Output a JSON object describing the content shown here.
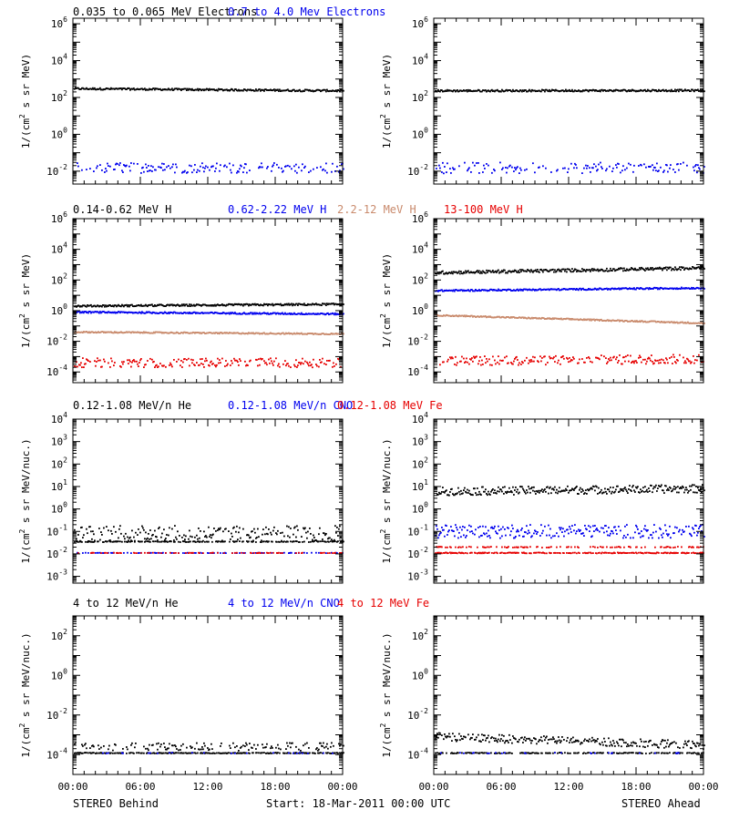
{
  "colors": {
    "black": "#000000",
    "blue": "#0000ee",
    "tan": "#c98a6c",
    "red": "#e60000"
  },
  "footer": {
    "left": "STEREO Behind",
    "center": "Start: 18-Mar-2011 00:00 UTC",
    "right": "STEREO Ahead"
  },
  "chart_data": [
    {
      "type": "scatter",
      "panel": "Electrons Behind",
      "row": 0,
      "col": 0,
      "scale": "log",
      "legend": [
        {
          "text": "0.035 to 0.065 MeV Electrons",
          "color": "black"
        },
        {
          "text": "0.7 to 4.0 Mev Electrons",
          "color": "blue"
        }
      ],
      "ylabel": [
        "1/(cm",
        "2",
        " s sr MeV)"
      ],
      "ylim": [
        0.002,
        2000000
      ],
      "yticks": [
        {
          "pow": -2
        },
        {
          "pow": 0
        },
        {
          "pow": 2
        },
        {
          "pow": 4
        },
        {
          "pow": 6
        }
      ],
      "x_tick_labels": [],
      "series": [
        {
          "color": "black",
          "start": 300,
          "end": 230,
          "spread": 0.05,
          "density": 1.0
        },
        {
          "color": "blue",
          "start": 0.015,
          "end": 0.015,
          "spread": 0.28,
          "density": 0.55
        }
      ]
    },
    {
      "type": "scatter",
      "panel": "Electrons Ahead",
      "row": 0,
      "col": 1,
      "scale": "log",
      "legend": [],
      "ylabel": [
        "1/(cm",
        "2",
        " s sr MeV)"
      ],
      "ylim": [
        0.002,
        2000000
      ],
      "yticks": [
        {
          "pow": -2
        },
        {
          "pow": 0
        },
        {
          "pow": 2
        },
        {
          "pow": 4
        },
        {
          "pow": 6
        }
      ],
      "x_tick_labels": [],
      "series": [
        {
          "color": "black",
          "start": 230,
          "end": 240,
          "spread": 0.05,
          "density": 1.0
        },
        {
          "color": "blue",
          "start": 0.015,
          "end": 0.015,
          "spread": 0.3,
          "density": 0.5
        }
      ]
    },
    {
      "type": "scatter",
      "panel": "Protons Behind",
      "row": 1,
      "col": 0,
      "scale": "log",
      "legend": [
        {
          "text": "0.14-0.62 MeV H",
          "color": "black"
        },
        {
          "text": "0.62-2.22 MeV H",
          "color": "blue"
        },
        {
          "text": "2.2-12 MeV H",
          "color": "tan"
        },
        {
          "text": "13-100 MeV H",
          "color": "red"
        }
      ],
      "ylabel": [
        "1/(cm",
        "2",
        " s sr MeV)"
      ],
      "ylim": [
        2e-05,
        1000000
      ],
      "yticks": [
        {
          "pow": -4
        },
        {
          "pow": -2
        },
        {
          "pow": 0
        },
        {
          "pow": 2
        },
        {
          "pow": 4
        },
        {
          "pow": 6
        }
      ],
      "x_tick_labels": [],
      "series": [
        {
          "color": "black",
          "start": 2.0,
          "end": 2.6,
          "spread": 0.06,
          "density": 1.0
        },
        {
          "color": "blue",
          "start": 0.8,
          "end": 0.6,
          "spread": 0.05,
          "density": 1.0
        },
        {
          "color": "tan",
          "start": 0.04,
          "end": 0.03,
          "spread": 0.04,
          "density": 1.0
        },
        {
          "color": "red",
          "start": 0.0004,
          "end": 0.0004,
          "spread": 0.3,
          "density": 0.7
        }
      ]
    },
    {
      "type": "scatter",
      "panel": "Protons Ahead",
      "row": 1,
      "col": 1,
      "scale": "log",
      "legend": [],
      "ylabel": [
        "1/(cm",
        "2",
        " s sr MeV)"
      ],
      "ylim": [
        2e-05,
        1000000
      ],
      "yticks": [
        {
          "pow": -4
        },
        {
          "pow": -2
        },
        {
          "pow": 0
        },
        {
          "pow": 2
        },
        {
          "pow": 4
        },
        {
          "pow": 6
        }
      ],
      "x_tick_labels": [],
      "series": [
        {
          "color": "black",
          "start": 300,
          "end": 600,
          "spread": 0.1,
          "density": 1.0
        },
        {
          "color": "blue",
          "start": 20,
          "end": 30,
          "spread": 0.05,
          "density": 1.0
        },
        {
          "color": "tan",
          "start": 0.5,
          "end": 0.15,
          "spread": 0.04,
          "density": 1.0
        },
        {
          "color": "red",
          "start": 0.0005,
          "end": 0.0007,
          "spread": 0.3,
          "density": 0.7
        }
      ]
    },
    {
      "type": "scatter",
      "panel": "Heavy ions low Behind",
      "row": 2,
      "col": 0,
      "scale": "log",
      "legend": [
        {
          "text": "0.12-1.08 MeV/n He",
          "color": "black"
        },
        {
          "text": "0.12-1.08 MeV/n CNO",
          "color": "blue"
        },
        {
          "text": "0.12-1.08 MeV Fe",
          "color": "red"
        }
      ],
      "ylabel": [
        "1/(cm",
        "2",
        " s sr MeV/nuc.)"
      ],
      "ylim": [
        0.0005,
        10000
      ],
      "yticks": [
        {
          "pow": -3
        },
        {
          "pow": -2
        },
        {
          "pow": -1
        },
        {
          "pow": 0
        },
        {
          "pow": 1
        },
        {
          "pow": 2
        },
        {
          "pow": 3
        },
        {
          "pow": 4
        }
      ],
      "x_tick_labels": [],
      "series": [
        {
          "color": "black",
          "start": 0.08,
          "end": 0.08,
          "spread": 0.35,
          "density": 0.7
        },
        {
          "color": "black",
          "start": 0.035,
          "end": 0.035,
          "spread": 0.02,
          "density": 0.6
        },
        {
          "color": "blue",
          "start": 0.011,
          "end": 0.011,
          "spread": 0.01,
          "density": 0.35
        },
        {
          "color": "red",
          "start": 0.011,
          "end": 0.011,
          "spread": 0.01,
          "density": 0.3
        }
      ]
    },
    {
      "type": "scatter",
      "panel": "Heavy ions low Ahead",
      "row": 2,
      "col": 1,
      "scale": "log",
      "legend": [],
      "ylabel": [
        "1/(cm",
        "2",
        " s sr MeV/nuc.)"
      ],
      "ylim": [
        0.0005,
        10000
      ],
      "yticks": [
        {
          "pow": -3
        },
        {
          "pow": -2
        },
        {
          "pow": -1
        },
        {
          "pow": 0
        },
        {
          "pow": 1
        },
        {
          "pow": 2
        },
        {
          "pow": 3
        },
        {
          "pow": 4
        }
      ],
      "x_tick_labels": [],
      "series": [
        {
          "color": "black",
          "start": 6,
          "end": 8,
          "spread": 0.18,
          "density": 1.0
        },
        {
          "color": "blue",
          "start": 0.1,
          "end": 0.1,
          "spread": 0.3,
          "density": 0.85
        },
        {
          "color": "red",
          "start": 0.011,
          "end": 0.011,
          "spread": 0.02,
          "density": 0.7
        },
        {
          "color": "red",
          "start": 0.02,
          "end": 0.02,
          "spread": 0.02,
          "density": 0.35
        }
      ]
    },
    {
      "type": "scatter",
      "panel": "Heavy ions high Behind",
      "row": 3,
      "col": 0,
      "scale": "log",
      "legend": [
        {
          "text": "4 to 12 MeV/n He",
          "color": "black"
        },
        {
          "text": "4 to 12 MeV/n CNO",
          "color": "blue"
        },
        {
          "text": "4 to 12 MeV Fe",
          "color": "red"
        }
      ],
      "ylabel": [
        "1/(cm",
        "2",
        " s sr MeV/nuc.)"
      ],
      "ylim": [
        1e-05,
        1000
      ],
      "yticks": [
        {
          "pow": -4
        },
        {
          "pow": -2
        },
        {
          "pow": 0
        },
        {
          "pow": 2
        }
      ],
      "x_tick_labels": [
        "00:00",
        "06:00",
        "12:00",
        "18:00",
        "00:00"
      ],
      "series": [
        {
          "color": "black",
          "start": 0.00025,
          "end": 0.00025,
          "spread": 0.2,
          "density": 0.45
        },
        {
          "color": "black",
          "start": 0.00012,
          "end": 0.00012,
          "spread": 0.02,
          "density": 0.75
        },
        {
          "color": "blue",
          "start": 0.00012,
          "end": 0.00012,
          "spread": 0.02,
          "density": 0.06
        }
      ]
    },
    {
      "type": "scatter",
      "panel": "Heavy ions high Ahead",
      "row": 3,
      "col": 1,
      "scale": "log",
      "legend": [],
      "ylabel": [
        "1/(cm",
        "2",
        " s sr MeV/nuc.)"
      ],
      "ylim": [
        1e-05,
        1000
      ],
      "yticks": [
        {
          "pow": -4
        },
        {
          "pow": -2
        },
        {
          "pow": 0
        },
        {
          "pow": 2
        }
      ],
      "x_tick_labels": [
        "00:00",
        "06:00",
        "12:00",
        "18:00",
        "00:00"
      ],
      "series": [
        {
          "color": "black",
          "start": 0.0008,
          "end": 0.0003,
          "spread": 0.2,
          "density": 0.85
        },
        {
          "color": "black",
          "start": 0.00012,
          "end": 0.00012,
          "spread": 0.02,
          "density": 0.6
        },
        {
          "color": "blue",
          "start": 0.00012,
          "end": 0.00012,
          "spread": 0.02,
          "density": 0.06
        }
      ]
    }
  ]
}
